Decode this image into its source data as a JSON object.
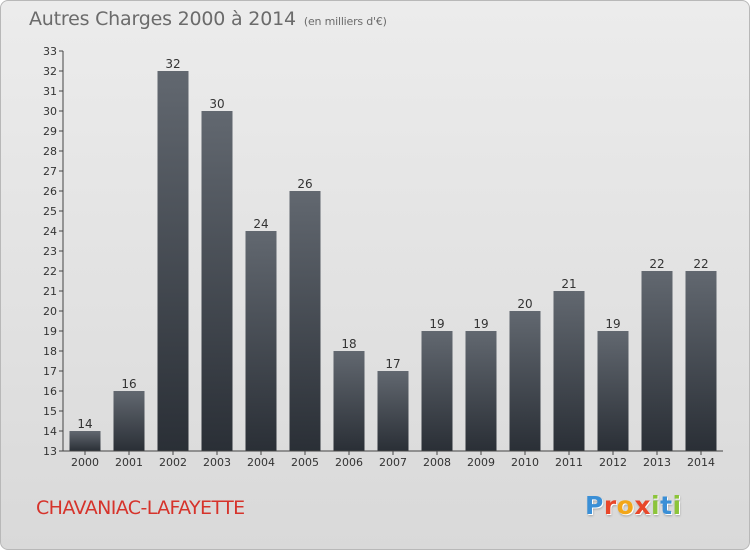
{
  "header": {
    "title": "Autres Charges 2000 à 2014",
    "subtitle": "(en milliers d'€)"
  },
  "footer": {
    "commune": "CHAVANIAC-LAFAYETTE",
    "logo_letters": [
      {
        "ch": "P",
        "color": "#3a8fd6"
      },
      {
        "ch": "r",
        "color": "#e8472a"
      },
      {
        "ch": "o",
        "color": "#f2a618"
      },
      {
        "ch": "x",
        "color": "#e8472a"
      },
      {
        "ch": "i",
        "color": "#8cc43a"
      },
      {
        "ch": "t",
        "color": "#3a8fd6"
      },
      {
        "ch": "i",
        "color": "#8cc43a"
      }
    ]
  },
  "chart_data": {
    "type": "bar",
    "title": "Autres Charges 2000 à 2014",
    "subtitle": "(en milliers d'€)",
    "categories": [
      "2000",
      "2001",
      "2002",
      "2003",
      "2004",
      "2005",
      "2006",
      "2007",
      "2008",
      "2009",
      "2010",
      "2011",
      "2012",
      "2013",
      "2014"
    ],
    "values": [
      14,
      16,
      32,
      30,
      24,
      26,
      18,
      17,
      19,
      19,
      20,
      21,
      19,
      22,
      22
    ],
    "ylim": [
      13,
      33
    ],
    "yticks": [
      13,
      14,
      15,
      16,
      17,
      18,
      19,
      20,
      21,
      22,
      23,
      24,
      25,
      26,
      27,
      28,
      29,
      30,
      31,
      32,
      33
    ],
    "grid": false,
    "data_labels": true,
    "colors": {
      "bar_top": "#626870",
      "bar_bottom": "#2a2f36",
      "axis": "#444444",
      "text": "#333333"
    }
  }
}
